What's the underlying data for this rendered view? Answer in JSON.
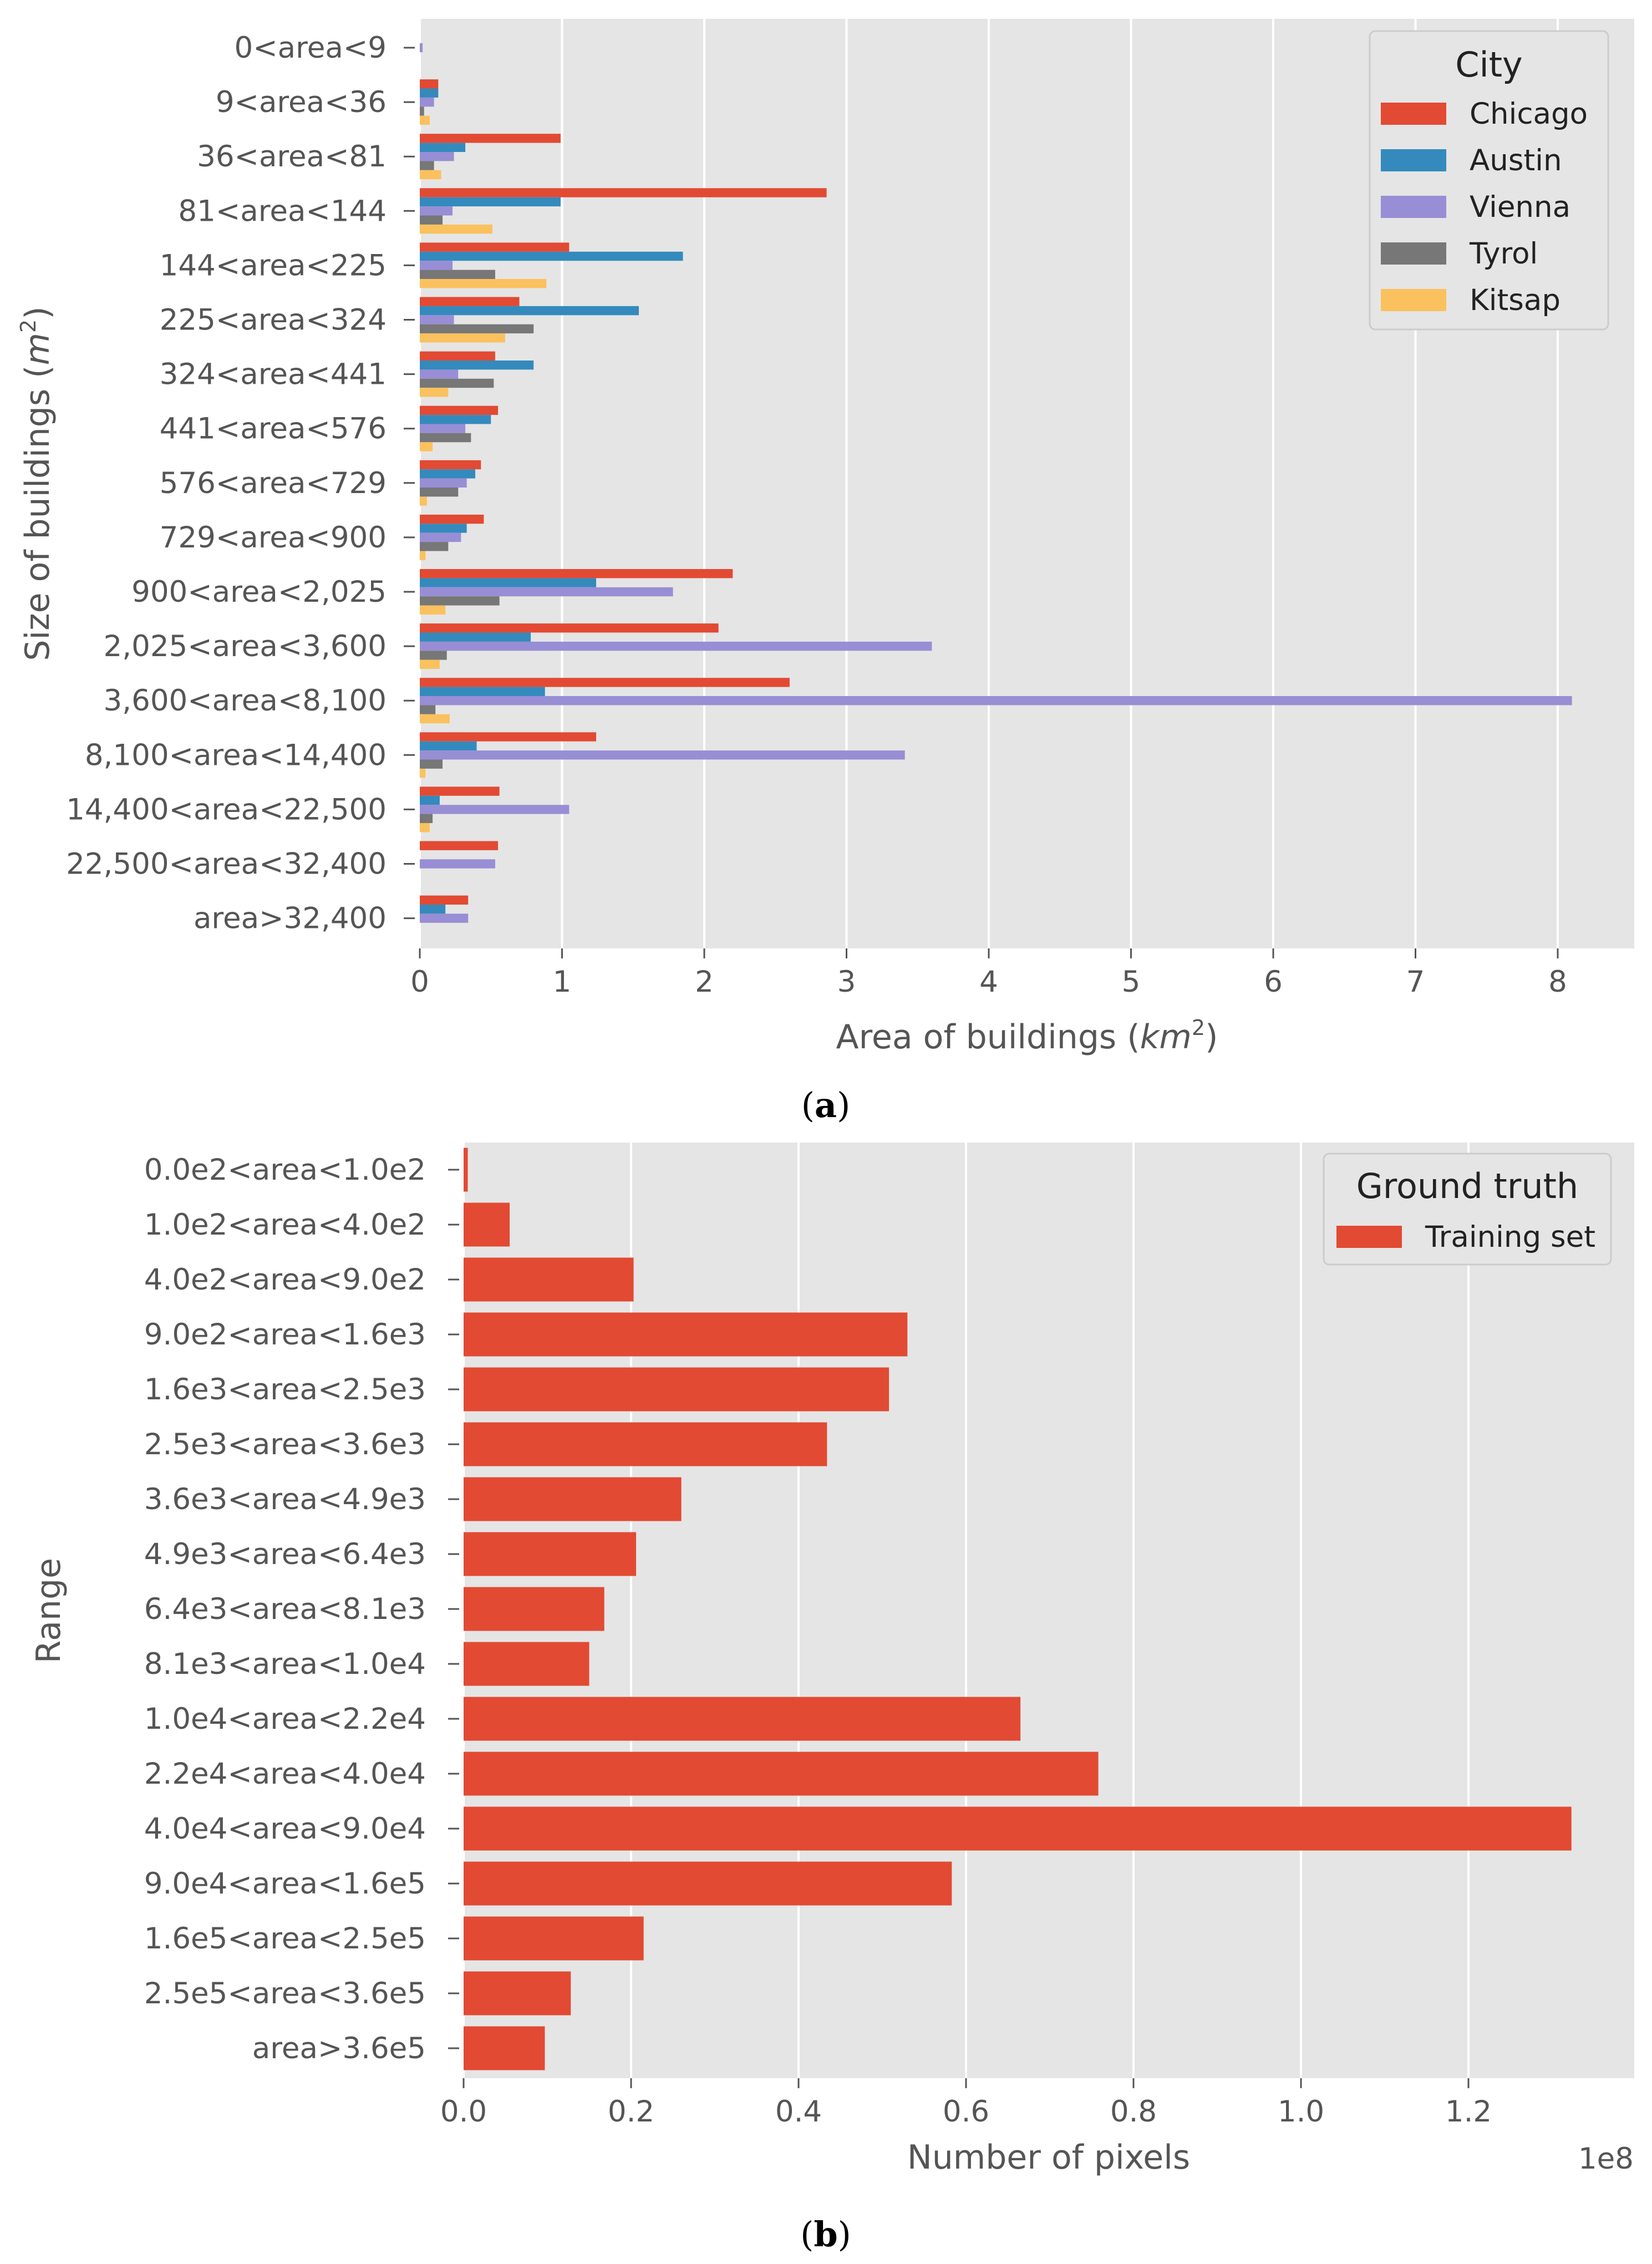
{
  "colors": {
    "Chicago": "#e24a33",
    "Austin": "#348abd",
    "Vienna": "#988ed5",
    "Tyrol": "#777777",
    "Kitsap": "#fbc15e",
    "Training set": "#e24a33"
  },
  "chart_data": [
    {
      "type": "bar",
      "orientation": "horizontal",
      "caption_open": "(",
      "caption_letter": "a",
      "caption_close": ")",
      "xlabel_main": "Area of buildings (",
      "xlabel_unit": "km",
      "xlabel_sup": "2",
      "xlabel_end": ")",
      "ylabel_main": "Size of buildings (",
      "ylabel_unit": "m",
      "ylabel_sup": "2",
      "ylabel_end": ")",
      "xlim": [
        0,
        8.3
      ],
      "xticks": [
        0,
        1,
        2,
        3,
        4,
        5,
        6,
        7,
        8
      ],
      "xtick_labels": [
        "0",
        "1",
        "2",
        "3",
        "4",
        "5",
        "6",
        "7",
        "8"
      ],
      "grid": true,
      "legend_title": "City",
      "legend_position": "top-right",
      "categories": [
        "0<area<9",
        "9<area<36",
        "36<area<81",
        "81<area<144",
        "144<area<225",
        "225<area<324",
        "324<area<441",
        "441<area<576",
        "576<area<729",
        "729<area<900",
        "900<area<2,025",
        "2,025<area<3,600",
        "3,600<area<8,100",
        "8,100<area<14,400",
        "14,400<area<22,500",
        "22,500<area<32,400",
        "area>32,400"
      ],
      "series": [
        {
          "name": "Chicago",
          "values": [
            0,
            0.13,
            0.99,
            2.86,
            1.05,
            0.7,
            0.53,
            0.55,
            0.43,
            0.45,
            2.2,
            2.1,
            2.6,
            1.24,
            0.56,
            0.55,
            0.34
          ]
        },
        {
          "name": "Austin",
          "values": [
            0,
            0.13,
            0.32,
            0.99,
            1.85,
            1.54,
            0.8,
            0.5,
            0.39,
            0.33,
            1.24,
            0.78,
            0.88,
            0.4,
            0.14,
            0,
            0.18
          ]
        },
        {
          "name": "Vienna",
          "values": [
            0.02,
            0.1,
            0.24,
            0.23,
            0.23,
            0.24,
            0.27,
            0.32,
            0.33,
            0.29,
            1.78,
            3.6,
            8.1,
            3.41,
            1.05,
            0.53,
            0.34
          ]
        },
        {
          "name": "Tyrol",
          "values": [
            0,
            0.03,
            0.1,
            0.16,
            0.53,
            0.8,
            0.52,
            0.36,
            0.27,
            0.2,
            0.56,
            0.19,
            0.11,
            0.16,
            0.09,
            0,
            0
          ]
        },
        {
          "name": "Kitsap",
          "values": [
            0,
            0.07,
            0.15,
            0.51,
            0.89,
            0.6,
            0.2,
            0.09,
            0.05,
            0.04,
            0.18,
            0.14,
            0.21,
            0.04,
            0.07,
            0,
            0
          ]
        }
      ]
    },
    {
      "type": "bar",
      "orientation": "horizontal",
      "caption_open": "(",
      "caption_letter": "b",
      "caption_close": ")",
      "xlabel": "Number of pixels",
      "ylabel": "Range",
      "x_scale_label": "1e8",
      "xlim": [
        0,
        1.35
      ],
      "xticks": [
        0.0,
        0.2,
        0.4,
        0.6,
        0.8,
        1.0,
        1.2
      ],
      "xtick_labels": [
        "0.0",
        "0.2",
        "0.4",
        "0.6",
        "0.8",
        "1.0",
        "1.2"
      ],
      "grid": true,
      "legend_title": "Ground truth",
      "legend_position": "top-right",
      "categories": [
        "0.0e2<area<1.0e2",
        "1.0e2<area<4.0e2",
        "4.0e2<area<9.0e2",
        "9.0e2<area<1.6e3",
        "1.6e3<area<2.5e3",
        "2.5e3<area<3.6e3",
        "3.6e3<area<4.9e3",
        "4.9e3<area<6.4e3",
        "6.4e3<area<8.1e3",
        "8.1e3<area<1.0e4",
        "1.0e4<area<2.2e4",
        "2.2e4<area<4.0e4",
        "4.0e4<area<9.0e4",
        "9.0e4<area<1.6e5",
        "1.6e5<area<2.5e5",
        "2.5e5<area<3.6e5",
        "area>3.6e5"
      ],
      "series": [
        {
          "name": "Training set",
          "values": [
            0.005,
            0.055,
            0.203,
            0.53,
            0.508,
            0.434,
            0.26,
            0.206,
            0.168,
            0.15,
            0.665,
            0.758,
            1.323,
            0.583,
            0.215,
            0.128,
            0.097
          ]
        }
      ]
    }
  ]
}
